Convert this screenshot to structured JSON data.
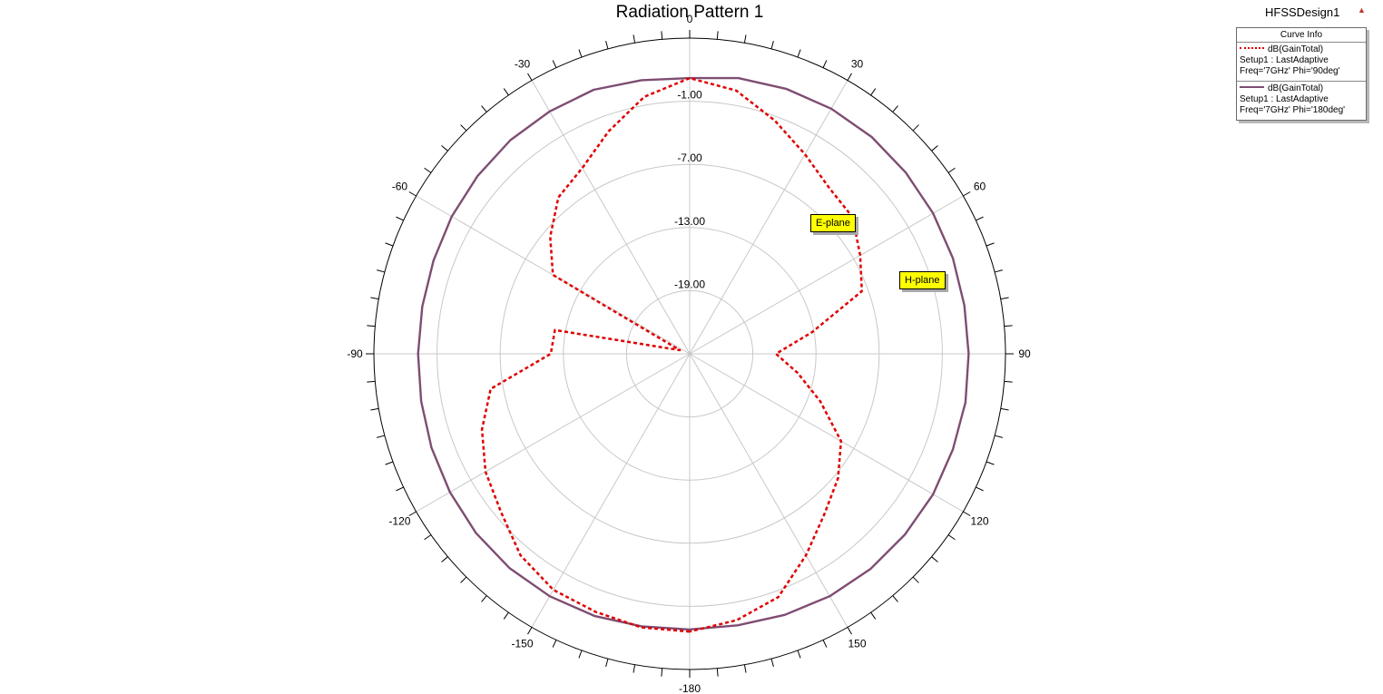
{
  "title": "Radiation Pattern 1",
  "design_name": "HFSSDesign1",
  "icon": "warning-triangle-icon",
  "legend": {
    "header": "Curve Info",
    "entries": [
      {
        "name": "dB(GainTotal)",
        "setup": "Setup1 : LastAdaptive",
        "freq": "Freq='7GHz' Phi='90deg'",
        "color": "#e00000",
        "style": "dashed"
      },
      {
        "name": "dB(GainTotal)",
        "setup": "Setup1 : LastAdaptive",
        "freq": "Freq='7GHz' Phi='180deg'",
        "color": "#7e4d72",
        "style": "solid"
      }
    ]
  },
  "markers": [
    "E-plane",
    "H-plane"
  ],
  "chart_data": {
    "type": "polar",
    "angle_tick_labels": [
      "0",
      "30",
      "60",
      "90",
      "120",
      "150",
      "-180",
      "-150",
      "-120",
      "-90",
      "-60",
      "-30"
    ],
    "radial_tick_labels": [
      "-1.00",
      "-7.00",
      "-13.00",
      "-19.00"
    ],
    "radial_range": [
      -25,
      5
    ],
    "series": [
      {
        "name": "dB(GainTotal) Setup1 : LastAdaptive Freq='7GHz' Phi='90deg'",
        "color": "#e00000",
        "style": "dashed",
        "theta": [
          -180,
          -170,
          -160,
          -150,
          -140,
          -130,
          -120,
          -110,
          -100,
          -90,
          -80,
          -70,
          -60,
          -50,
          -40,
          -30,
          -20,
          -10,
          0,
          10,
          20,
          30,
          40,
          50,
          60,
          70,
          80,
          90,
          100,
          110,
          120,
          130,
          140,
          150,
          160,
          170,
          180
        ],
        "gain_db": [
          1.4,
          1.4,
          1.1,
          0.9,
          0.0,
          -1.6,
          -2.6,
          -4.0,
          -5.8,
          -11.8,
          -12.0,
          -24.0,
          -10.0,
          -7.7,
          -5.6,
          -4.6,
          -2.5,
          -0.2,
          1.2,
          0.4,
          -1.4,
          -3.1,
          -4.4,
          -4.8,
          -6.3,
          -7.6,
          -13.2,
          -16.8,
          -14.6,
          -11.8,
          -8.4,
          -6.6,
          -5.1,
          -2.9,
          -0.4,
          0.7,
          1.4
        ]
      },
      {
        "name": "dB(GainTotal) Setup1 : LastAdaptive Freq='7GHz' Phi='180deg'",
        "color": "#7e4d72",
        "style": "solid",
        "theta": [
          -180,
          -170,
          -160,
          -150,
          -140,
          -130,
          -120,
          -110,
          -100,
          -90,
          -80,
          -70,
          -60,
          -50,
          -40,
          -30,
          -20,
          -10,
          0,
          10,
          20,
          30,
          40,
          50,
          60,
          70,
          80,
          90,
          100,
          110,
          120,
          130,
          140,
          150,
          160,
          170,
          180
        ],
        "gain_db": [
          1.2,
          1.3,
          1.5,
          1.6,
          1.6,
          1.5,
          1.3,
          1.1,
          0.9,
          0.8,
          0.8,
          0.9,
          1.1,
          1.3,
          1.5,
          1.6,
          1.7,
          1.4,
          1.2,
          1.6,
          1.8,
          1.9,
          1.9,
          1.8,
          1.7,
          1.6,
          1.5,
          1.5,
          1.6,
          1.6,
          1.7,
          1.7,
          1.7,
          1.6,
          1.4,
          1.2,
          1.2
        ]
      }
    ]
  }
}
